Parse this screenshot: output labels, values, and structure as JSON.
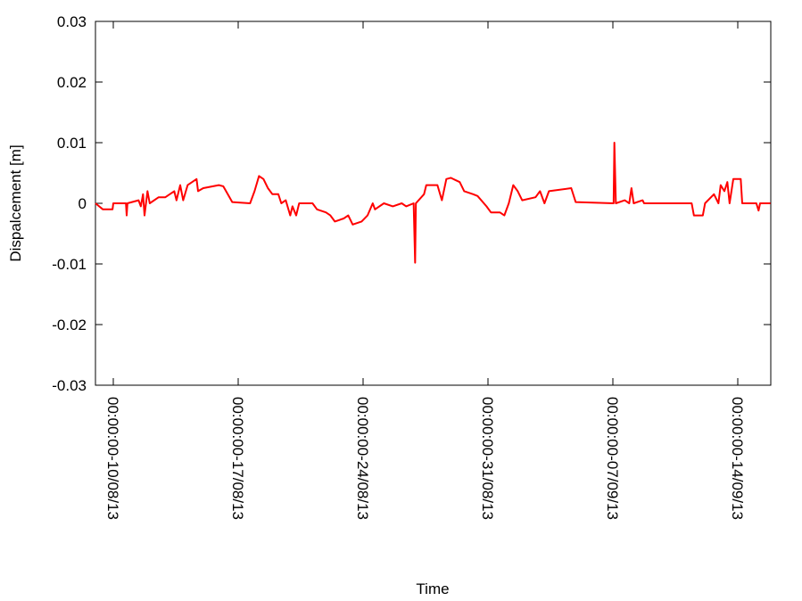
{
  "chart_data": {
    "type": "line",
    "xlabel": "Time",
    "ylabel": "Dispalcement [m]",
    "xlim": [
      "00:00:00-09/08/13",
      "20:24:00-15/09/13"
    ],
    "xticks": [
      "00:00:00-10/08/13",
      "00:00:00-17/08/13",
      "00:00:00-24/08/13",
      "00:00:00-31/08/13",
      "00:00:00-07/09/13",
      "00:00:00-14/09/13"
    ],
    "ylim": [
      -0.03,
      0.03
    ],
    "yticks": [
      -0.03,
      -0.02,
      -0.01,
      0,
      0.01,
      0.02,
      0.03
    ],
    "grid": false,
    "x": [
      "00:00:00-09/08/13",
      "10:00:00-09/08/13",
      "23:00:00-09/08/13",
      "00:00:00-10/08/13",
      "17:00:00-10/08/13",
      "18:00:00-10/08/13",
      "19:00:00-10/08/13",
      "10:00:00-11/08/13",
      "13:00:00-11/08/13",
      "16:00:00-11/08/13",
      "18:00:00-11/08/13",
      "22:00:00-11/08/13",
      "01:00:00-12/08/13",
      "13:00:00-12/08/13",
      "22:00:00-12/08/13",
      "10:00:00-13/08/13",
      "13:00:00-13/08/13",
      "18:00:00-13/08/13",
      "22:00:00-13/08/13",
      "04:00:00-14/08/13",
      "10:00:00-14/08/13",
      "16:00:00-14/08/13",
      "18:00:00-14/08/13",
      "01:00:00-15/08/13",
      "22:00:00-15/08/13",
      "04:00:00-16/08/13",
      "16:00:00-16/08/13",
      "16:00:00-17/08/13",
      "22:00:00-17/08/13",
      "04:00:00-18/08/13",
      "10:00:00-18/08/13",
      "16:00:00-18/08/13",
      "22:00:00-18/08/13",
      "06:00:00-19/08/13",
      "10:00:00-19/08/13",
      "16:00:00-19/08/13",
      "22:00:00-19/08/13",
      "01:00:00-20/08/13",
      "06:00:00-20/08/13",
      "10:00:00-20/08/13",
      "04:00:00-21/08/13",
      "10:00:00-21/08/13",
      "22:00:00-21/08/13",
      "04:00:00-22/08/13",
      "10:00:00-22/08/13",
      "22:00:00-22/08/13",
      "04:00:00-23/08/13",
      "10:00:00-23/08/13",
      "22:00:00-23/08/13",
      "06:00:00-24/08/13",
      "13:00:00-24/08/13",
      "16:00:00-24/08/13",
      "04:00:00-25/08/13",
      "16:00:00-25/08/13",
      "04:00:00-26/08/13",
      "10:00:00-26/08/13",
      "20:00:00-26/08/13",
      "22:00:00-26/08/13",
      "23:00:00-26/08/13",
      "10:00:00-27/08/13",
      "13:00:00-27/08/13",
      "04:00:00-28/08/13",
      "10:00:00-28/08/13",
      "16:00:00-28/08/13",
      "22:00:00-28/08/13",
      "10:00:00-29/08/13",
      "16:00:00-29/08/13",
      "04:00:00-30/08/13",
      "10:00:00-30/08/13",
      "22:00:00-30/08/13",
      "04:00:00-31/08/13",
      "16:00:00-31/08/13",
      "22:00:00-31/08/13",
      "04:00:00-01/09/13",
      "10:00:00-01/09/13",
      "16:00:00-01/09/13",
      "22:00:00-01/09/13",
      "16:00:00-02/09/13",
      "22:00:00-02/09/13",
      "04:00:00-03/09/13",
      "10:00:00-03/09/13",
      "16:00:00-04/09/13",
      "22:00:00-04/09/13",
      "01:00:00-07/09/13",
      "02:00:00-07/09/13",
      "04:00:00-07/09/13",
      "16:00:00-07/09/13",
      "22:00:00-07/09/13",
      "01:00:00-08/09/13",
      "04:00:00-08/09/13",
      "16:00:00-08/09/13",
      "18:00:00-08/09/13",
      "10:00:00-11/09/13",
      "13:00:00-11/09/13",
      "01:00:00-12/09/13",
      "04:00:00-12/09/13",
      "16:00:00-12/09/13",
      "22:00:00-12/09/13",
      "01:00:00-13/09/13",
      "06:00:00-13/09/13",
      "10:00:00-13/09/13",
      "13:00:00-13/09/13",
      "18:00:00-13/09/13",
      "04:00:00-14/09/13",
      "06:00:00-14/09/13",
      "01:00:00-15/09/13",
      "04:00:00-15/09/13",
      "06:00:00-15/09/13",
      "20:00:00-15/09/13"
    ],
    "series": [
      {
        "name": "Displacement",
        "color": "#ff0000",
        "values": [
          0,
          -0.001,
          -0.001,
          0,
          0,
          -0.002,
          0,
          0.0005,
          -0.0005,
          0.0015,
          -0.002,
          0.002,
          0,
          0.001,
          0.001,
          0.002,
          0.0005,
          0.003,
          0.0005,
          0.003,
          0.0035,
          0.004,
          0.002,
          0.0025,
          0.003,
          0.0028,
          0.0002,
          0,
          0.002,
          0.0045,
          0.004,
          0.0025,
          0.0015,
          0.0015,
          0,
          0.0005,
          -0.002,
          -0.0005,
          -0.002,
          0,
          0,
          -0.001,
          -0.0015,
          -0.002,
          -0.003,
          -0.0025,
          -0.002,
          -0.0035,
          -0.003,
          -0.002,
          0,
          -0.001,
          0,
          -0.0005,
          0,
          -0.0005,
          0,
          -0.0098,
          0,
          0.0015,
          0.003,
          0.003,
          0.0005,
          0.004,
          0.0042,
          0.0035,
          0.002,
          0.0015,
          0.0012,
          -0.0005,
          -0.0015,
          -0.0015,
          -0.002,
          0,
          0.003,
          0.002,
          0.0005,
          0.001,
          0.002,
          0,
          0.002,
          0.0025,
          0.0002,
          0,
          0.01,
          0,
          0.0005,
          0,
          0.0025,
          0,
          0.0005,
          0,
          0,
          -0.002,
          -0.002,
          0,
          0.0015,
          0,
          0.003,
          0.002,
          0.0035,
          0,
          0.004,
          0.004,
          0,
          0,
          -0.0012,
          0,
          0
        ]
      }
    ]
  }
}
